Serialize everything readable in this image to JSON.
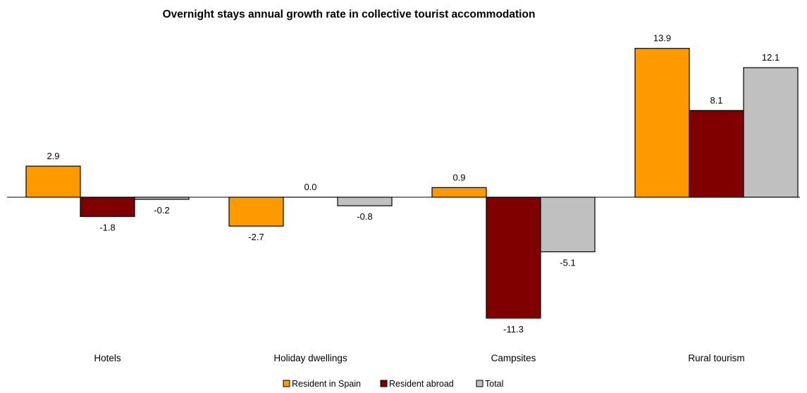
{
  "chart_data": {
    "type": "bar",
    "title": "Overnight stays annual growth rate in collective tourist accommodation",
    "xlabel": "",
    "ylabel": "",
    "categories": [
      "Hotels",
      "Holiday dwellings",
      "Campsites",
      "Rural tourism"
    ],
    "series": [
      {
        "name": "Resident in Spain",
        "color": "#FF9900",
        "values": [
          2.9,
          -2.7,
          0.9,
          13.9
        ],
        "labels": [
          "2.9",
          "-2.7",
          "0.9",
          "13.9"
        ]
      },
      {
        "name": "Resident abroad",
        "color": "#800000",
        "values": [
          -1.8,
          0.0,
          -11.3,
          8.1
        ],
        "labels": [
          "-1.8",
          "0.0",
          "-11.3",
          "8.1"
        ]
      },
      {
        "name": "Total",
        "color": "#C0C0C0",
        "values": [
          -0.2,
          -0.8,
          -5.1,
          12.1
        ],
        "labels": [
          "-0.2",
          "-0.8",
          "-5.1",
          "12.1"
        ]
      }
    ],
    "grid": false,
    "legend_position": "bottom"
  }
}
